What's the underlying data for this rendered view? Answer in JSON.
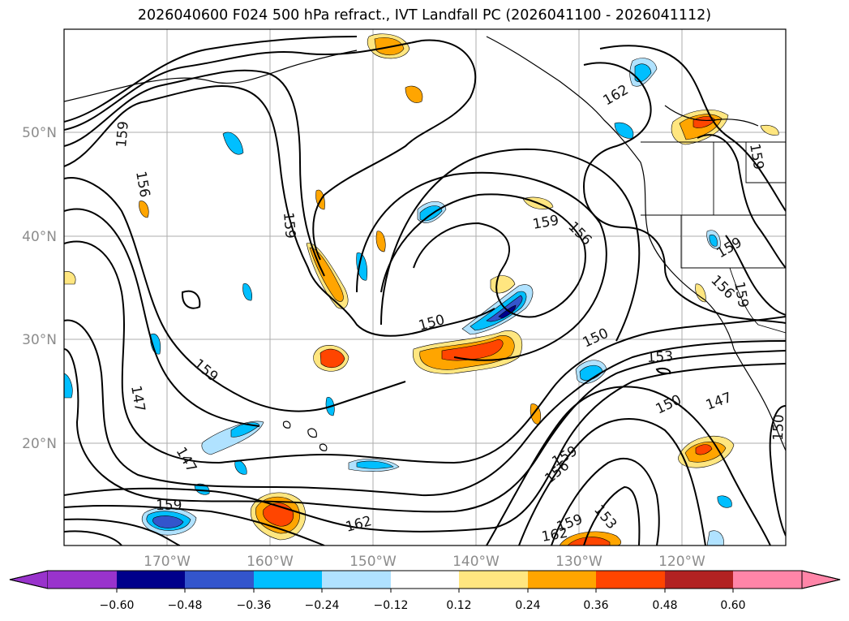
{
  "title": "2026040600 F024 500 hPa refract., IVT Landfall PC (2026041100 - 2026041112)",
  "lat_labels": [
    "50°N",
    "40°N",
    "30°N",
    "20°N"
  ],
  "lon_labels": [
    "170°W",
    "160°W",
    "150°W",
    "140°W",
    "130°W",
    "120°W"
  ],
  "contour_labels": [
    {
      "text": "159"
    },
    {
      "text": "156"
    },
    {
      "text": "159"
    },
    {
      "text": "159"
    },
    {
      "text": "156"
    },
    {
      "text": "150"
    },
    {
      "text": "150"
    },
    {
      "text": "153"
    },
    {
      "text": "159"
    },
    {
      "text": "147"
    },
    {
      "text": "147"
    },
    {
      "text": "159"
    },
    {
      "text": "150"
    },
    {
      "text": "147"
    },
    {
      "text": "162"
    },
    {
      "text": "159"
    },
    {
      "text": "156"
    },
    {
      "text": "162"
    },
    {
      "text": "159"
    },
    {
      "text": "153"
    },
    {
      "text": "162"
    },
    {
      "text": "159"
    },
    {
      "text": "156"
    },
    {
      "text": "159"
    },
    {
      "text": "159"
    },
    {
      "text": "150"
    }
  ],
  "colorbar": {
    "ticks": [
      "−0.60",
      "−0.48",
      "−0.36",
      "−0.24",
      "−0.12",
      "0.12",
      "0.24",
      "0.36",
      "0.48",
      "0.60"
    ],
    "colors": [
      "#9933cc",
      "#00008b",
      "#3355cc",
      "#00bfff",
      "#b0e2ff",
      "#ffffff",
      "#ffe680",
      "#ffa500",
      "#ff4500",
      "#b22222",
      "#ff85a8"
    ]
  },
  "legend_colors": {
    "neg_light": "#b0e2ff",
    "neg_mid": "#00bfff",
    "neg_dark": "#3355cc",
    "neg_deep": "#00008b",
    "pos_light": "#ffe680",
    "pos_mid": "#ffa500",
    "pos_dark": "#ff4500",
    "pos_deep": "#b22222"
  }
}
